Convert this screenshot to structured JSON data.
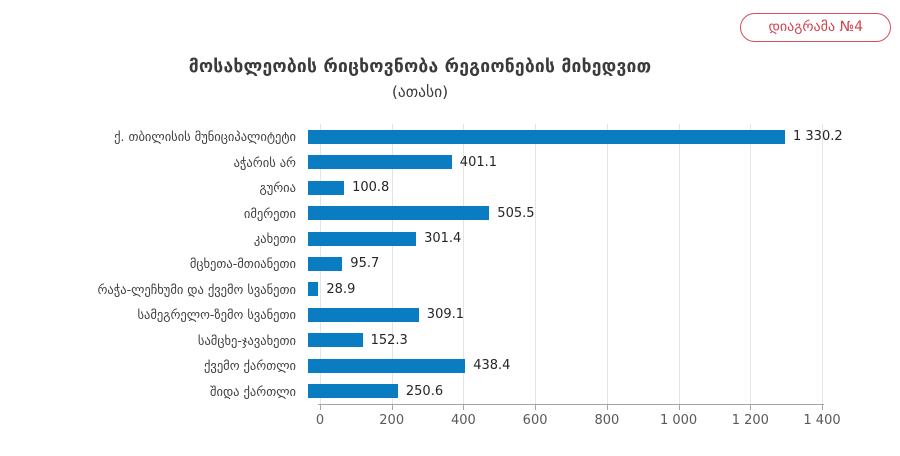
{
  "badge": {
    "label": "დიაგრამა №4",
    "color": "#d2444e"
  },
  "header": {
    "title": "მოსახლეობის რიცხოვნობა რეგიონების მიხედვით",
    "subtitle": "(ათასი)"
  },
  "chart_data": {
    "type": "bar",
    "orientation": "horizontal",
    "title": "მოსახლეობის რიცხოვნობა რეგიონების მიხედვით",
    "subtitle": "(ათასი)",
    "categories": [
      "ქ. თბილისის მუნიციპალიტეტი",
      "აჭარის არ",
      "გურია",
      "იმერეთი",
      "კახეთი",
      "მცხეთა-მთიანეთი",
      "რაჭა-ლეჩხუმი და ქვემო სვანეთი",
      "სამეგრელო-ზემო სვანეთი",
      "სამცხე-ჯავახეთი",
      "ქვემო ქართლი",
      "შიდა ქართლი"
    ],
    "values": [
      1330.2,
      401.1,
      100.8,
      505.5,
      301.4,
      95.7,
      28.9,
      309.1,
      152.3,
      438.4,
      250.6
    ],
    "value_labels": [
      "1 330.2",
      "401.1",
      "100.8",
      "505.5",
      "301.4",
      "95.7",
      "28.9",
      "309.1",
      "152.3",
      "438.4",
      "250.6"
    ],
    "xlabel": "",
    "ylabel": "",
    "xlim": [
      0,
      1400
    ],
    "x_ticks": [
      0,
      200,
      400,
      600,
      800,
      1000,
      1200,
      1400
    ],
    "x_tick_labels": [
      "0",
      "200",
      "400",
      "600",
      "800",
      "1 000",
      "1 200",
      "1 400"
    ],
    "bar_color": "#0a7cc2",
    "grid": "vertical-gridlines-on",
    "legend": "none"
  }
}
